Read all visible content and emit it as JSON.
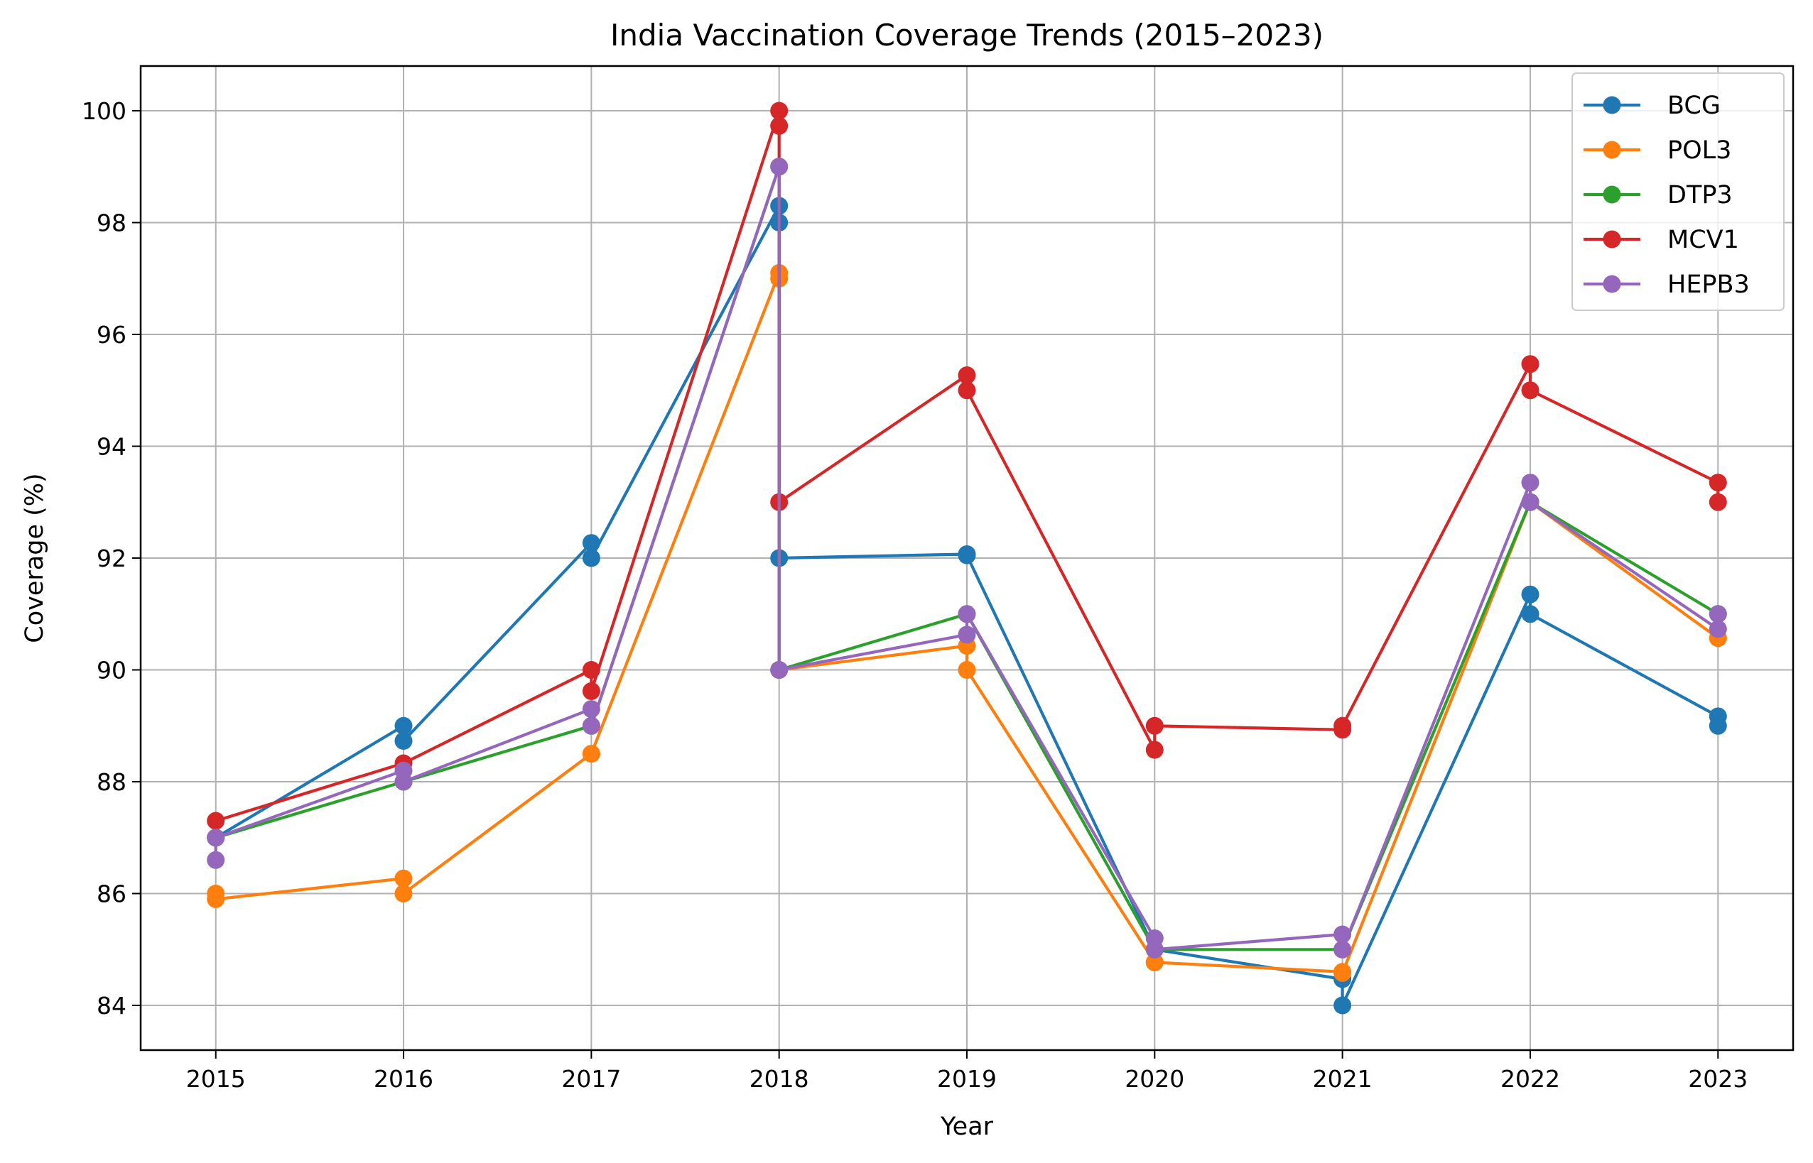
{
  "chart_data": {
    "type": "line",
    "title": "India Vaccination Coverage Trends (2015–2023)",
    "xlabel": "Year",
    "ylabel": "Coverage (%)",
    "xlim": [
      2014.6,
      2023.4
    ],
    "ylim": [
      83.2,
      100.8
    ],
    "x_ticks": [
      2015,
      2016,
      2017,
      2018,
      2019,
      2020,
      2021,
      2022,
      2023
    ],
    "y_ticks": [
      84,
      86,
      88,
      90,
      92,
      94,
      96,
      98,
      100
    ],
    "grid": true,
    "legend_position": "top-right",
    "series": [
      {
        "name": "BCG",
        "color": "#1f77b4",
        "points": [
          [
            2015,
            87.0
          ],
          [
            2015,
            87.0
          ],
          [
            2016,
            89.0
          ],
          [
            2016,
            88.73
          ],
          [
            2017,
            92.27
          ],
          [
            2017,
            92.0
          ],
          [
            2018,
            98.3
          ],
          [
            2018,
            98.0
          ],
          [
            2018,
            92.0
          ],
          [
            2019,
            92.07
          ],
          [
            2019,
            92.05
          ],
          [
            2020,
            85.0
          ],
          [
            2020,
            85.0
          ],
          [
            2021,
            84.47
          ],
          [
            2021,
            84.0
          ],
          [
            2022,
            91.35
          ],
          [
            2022,
            91.0
          ],
          [
            2023,
            89.17
          ],
          [
            2023,
            89.0
          ]
        ]
      },
      {
        "name": "POL3",
        "color": "#ff7f0e",
        "points": [
          [
            2015,
            86.0
          ],
          [
            2015,
            85.9
          ],
          [
            2016,
            86.27
          ],
          [
            2016,
            86.0
          ],
          [
            2017,
            88.5
          ],
          [
            2017,
            88.5
          ],
          [
            2018,
            97.1
          ],
          [
            2018,
            97.0
          ],
          [
            2018,
            90.0
          ],
          [
            2019,
            90.43
          ],
          [
            2019,
            90.0
          ],
          [
            2020,
            84.77
          ],
          [
            2020,
            84.77
          ],
          [
            2021,
            84.6
          ],
          [
            2021,
            84.58
          ],
          [
            2022,
            93.0
          ],
          [
            2022,
            93.0
          ],
          [
            2023,
            90.57
          ],
          [
            2023,
            90.57
          ]
        ]
      },
      {
        "name": "DTP3",
        "color": "#2ca02c",
        "points": [
          [
            2015,
            87.0
          ],
          [
            2016,
            88.0
          ],
          [
            2017,
            89.0
          ],
          [
            2018,
            99.0
          ],
          [
            2018,
            90.0
          ],
          [
            2019,
            91.0
          ],
          [
            2020,
            85.0
          ],
          [
            2021,
            85.0
          ],
          [
            2022,
            93.0
          ],
          [
            2023,
            91.0
          ]
        ]
      },
      {
        "name": "MCV1",
        "color": "#d62728",
        "points": [
          [
            2015,
            87.3
          ],
          [
            2016,
            88.33
          ],
          [
            2017,
            90.0
          ],
          [
            2017,
            89.62
          ],
          [
            2018,
            100.0
          ],
          [
            2018,
            99.73
          ],
          [
            2018,
            93.0
          ],
          [
            2019,
            95.27
          ],
          [
            2019,
            95.0
          ],
          [
            2020,
            88.57
          ],
          [
            2020,
            89.0
          ],
          [
            2021,
            88.93
          ],
          [
            2021,
            89.0
          ],
          [
            2022,
            95.47
          ],
          [
            2022,
            95.0
          ],
          [
            2023,
            93.35
          ],
          [
            2023,
            93.0
          ]
        ]
      },
      {
        "name": "HEPB3",
        "color": "#9467bd",
        "points": [
          [
            2015,
            86.6
          ],
          [
            2015,
            87.0
          ],
          [
            2016,
            88.2
          ],
          [
            2016,
            88.0
          ],
          [
            2017,
            89.3
          ],
          [
            2017,
            89.0
          ],
          [
            2018,
            99.0
          ],
          [
            2018,
            90.0
          ],
          [
            2019,
            90.63
          ],
          [
            2019,
            91.0
          ],
          [
            2020,
            85.2
          ],
          [
            2020,
            85.0
          ],
          [
            2021,
            85.27
          ],
          [
            2021,
            85.0
          ],
          [
            2022,
            93.35
          ],
          [
            2022,
            93.0
          ],
          [
            2023,
            90.73
          ],
          [
            2023,
            91.0
          ]
        ]
      }
    ]
  }
}
